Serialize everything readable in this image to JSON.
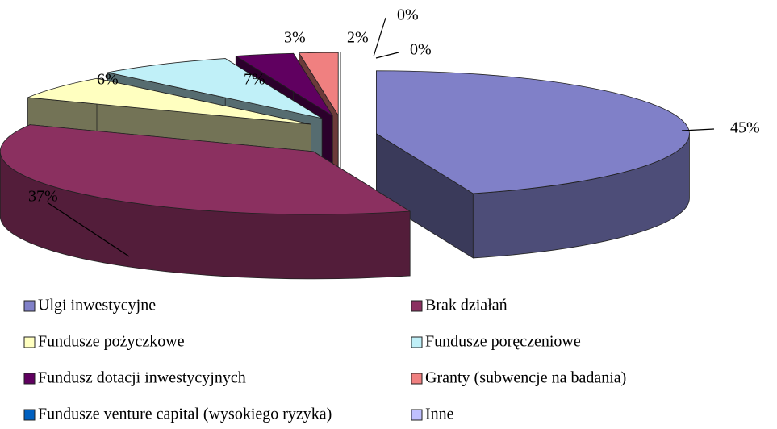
{
  "chart_data": {
    "type": "pie3d",
    "categories": [
      "Ulgi inwestycyjne",
      "Brak działań",
      "Fundusze pożyczkowe",
      "Fundusze poręczeniowe",
      "Fundusz dotacji inwestycyjnych",
      "Granty (subwencje na badania)",
      "Fundusze venture capital (wysokiego ryzyka)",
      "Inne"
    ],
    "values": [
      45,
      37,
      6,
      7,
      3,
      2,
      0,
      0
    ],
    "value_labels": [
      "45%",
      "37%",
      "6%",
      "7%",
      "3%",
      "2%",
      "0%",
      "0%"
    ],
    "colors": [
      "#8080c8",
      "#8b3060",
      "#ffffc0",
      "#c0f0f8",
      "#600060",
      "#f08080",
      "#0060c0",
      "#c0c0ff"
    ]
  }
}
